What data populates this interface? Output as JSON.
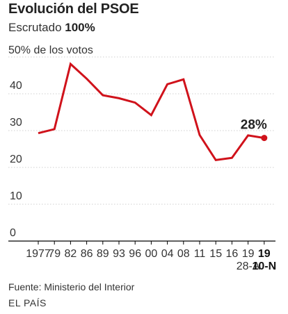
{
  "header": {
    "title": "Evolución del PSOE",
    "subtitle_prefix": "Escrutado ",
    "subtitle_value": "100%"
  },
  "footer": {
    "source": "Fuente: Ministerio del Interior",
    "brand": "EL PAÍS"
  },
  "colors": {
    "line": "#d0121b",
    "grid": "#cfcfcf",
    "axis": "#000000",
    "text": "#333333"
  },
  "chart_data": {
    "type": "line",
    "title": "Evolución del PSOE",
    "subtitle": "Escrutado 100%",
    "ylabel": "50% de los votos",
    "xlabel": "",
    "ylim": [
      0,
      50
    ],
    "yticks": [
      "0",
      "10",
      "20",
      "30",
      "40"
    ],
    "grid": true,
    "end_label": "28%",
    "series": [
      {
        "x": [
          "1977",
          "79",
          "82",
          "86",
          "89",
          "93",
          "96",
          "00",
          "04",
          "08",
          "11",
          "15",
          "16",
          "19 28-A",
          "19 10-N"
        ],
        "values": [
          29.3,
          30.4,
          48.1,
          44.1,
          39.6,
          38.8,
          37.6,
          34.2,
          42.6,
          43.9,
          28.8,
          22.0,
          22.6,
          28.7,
          28.0
        ]
      }
    ],
    "x_tick_labels": [
      {
        "line1": "1977",
        "line2": "",
        "bold": false
      },
      {
        "line1": "79",
        "line2": "",
        "bold": false
      },
      {
        "line1": "82",
        "line2": "",
        "bold": false
      },
      {
        "line1": "86",
        "line2": "",
        "bold": false
      },
      {
        "line1": "89",
        "line2": "",
        "bold": false
      },
      {
        "line1": "93",
        "line2": "",
        "bold": false
      },
      {
        "line1": "96",
        "line2": "",
        "bold": false
      },
      {
        "line1": "00",
        "line2": "",
        "bold": false
      },
      {
        "line1": "04",
        "line2": "",
        "bold": false
      },
      {
        "line1": "08",
        "line2": "",
        "bold": false
      },
      {
        "line1": "11",
        "line2": "",
        "bold": false
      },
      {
        "line1": "15",
        "line2": "",
        "bold": false
      },
      {
        "line1": "16",
        "line2": "",
        "bold": false
      },
      {
        "line1": "19",
        "line2": "28-A",
        "bold": false
      },
      {
        "line1": "19",
        "line2": "10-N",
        "bold": true
      }
    ]
  }
}
